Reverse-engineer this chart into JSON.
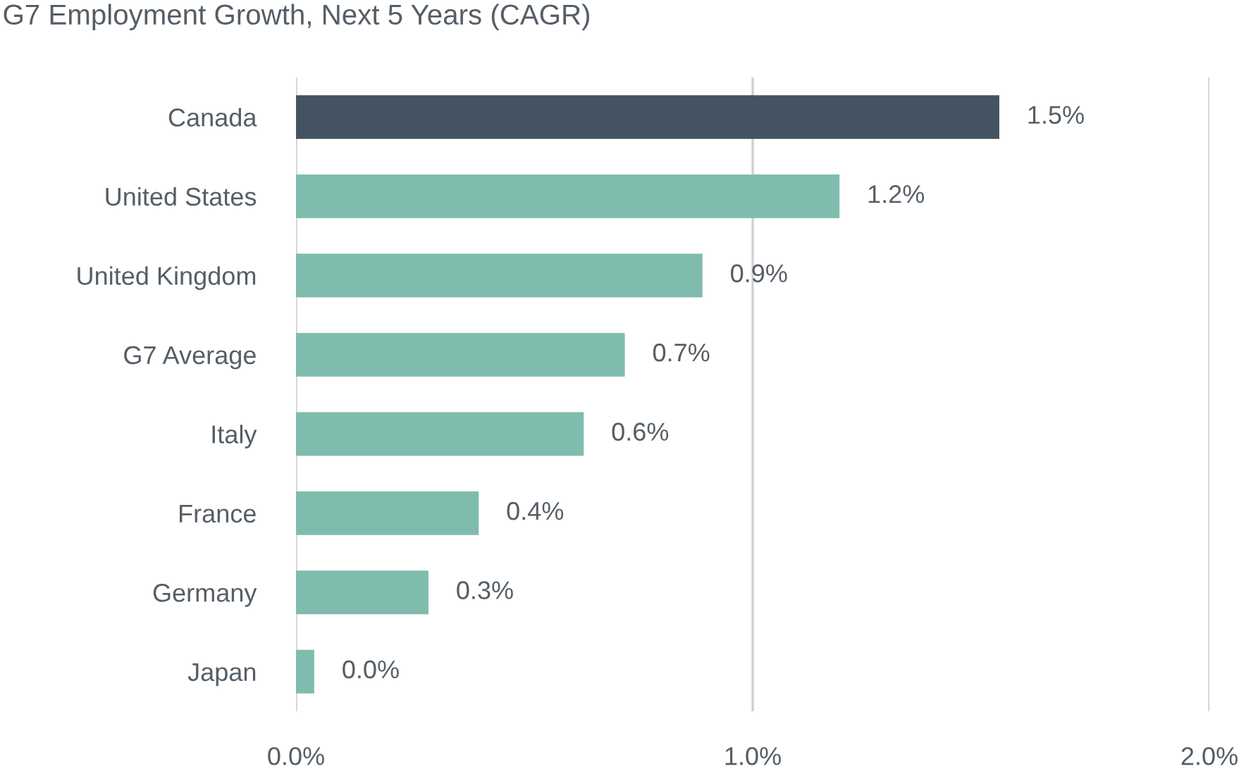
{
  "chart_data": {
    "type": "bar",
    "orientation": "horizontal",
    "title": "G7 Employment Growth, Next 5 Years (CAGR)",
    "categories": [
      "Canada",
      "United States",
      "United Kingdom",
      "G7 Average",
      "Italy",
      "France",
      "Germany",
      "Japan"
    ],
    "values": [
      1.54,
      1.19,
      0.89,
      0.72,
      0.63,
      0.4,
      0.29,
      0.04
    ],
    "colors": [
      "#435361",
      "#80bcae",
      "#80bcae",
      "#80bcae",
      "#80bcae",
      "#80bcae",
      "#80bcae",
      "#80bcae"
    ],
    "value_labels": [
      "1.5%",
      "1.2%",
      "0.9%",
      "0.7%",
      "0.6%",
      "0.4%",
      "0.3%",
      "0.0%"
    ],
    "xlim": [
      0,
      2
    ],
    "xticks": [
      {
        "value": 0,
        "label": "0.0%"
      },
      {
        "value": 1,
        "label": "1.0%"
      },
      {
        "value": 2,
        "label": "2.0%"
      }
    ],
    "grid": "x"
  }
}
